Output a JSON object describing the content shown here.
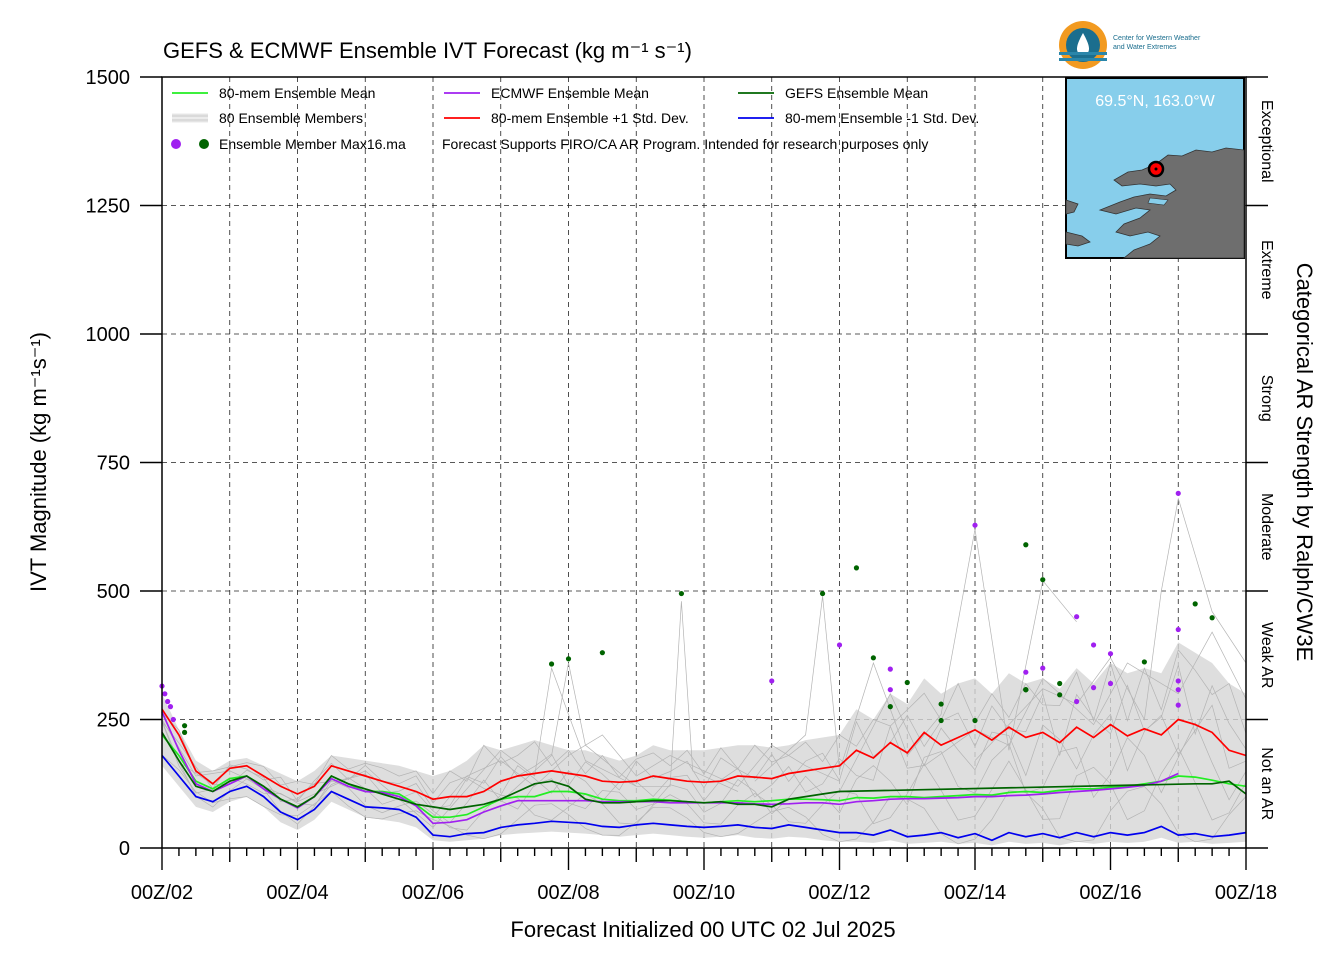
{
  "chart_data": {
    "type": "line",
    "title": "GEFS & ECMWF Ensemble IVT Forecast (kg m⁻¹ s⁻¹)",
    "xlabel": "Forecast Initialized 00 UTC 02 Jul 2025",
    "ylabel": "IVT Magnitude (kg m⁻¹s⁻¹)",
    "right_label": "Categorical AR Strength by Ralph/CW3E",
    "logo_text": [
      "Center for Western Weather",
      "and Water Extremes"
    ],
    "inset_label": "69.5°N, 163.0°W",
    "note": "Forecast Supports FIRO/CA AR Program. Intended for research purposes only",
    "xlim": [
      0,
      384
    ],
    "ylim": [
      0,
      1500
    ],
    "grid": true,
    "legend_placement": "top-left",
    "x_tick_labels": [
      {
        "h": 0,
        "label": "00Z/02"
      },
      {
        "h": 48,
        "label": "00Z/04"
      },
      {
        "h": 96,
        "label": "00Z/06"
      },
      {
        "h": 144,
        "label": "00Z/08"
      },
      {
        "h": 192,
        "label": "00Z/10"
      },
      {
        "h": 240,
        "label": "00Z/12"
      },
      {
        "h": 288,
        "label": "00Z/14"
      },
      {
        "h": 336,
        "label": "00Z/16"
      },
      {
        "h": 384,
        "label": "00Z/18"
      }
    ],
    "y_ticks": [
      0,
      250,
      500,
      750,
      1000,
      1250,
      1500
    ],
    "categories": [
      {
        "name": "Not an AR",
        "range": [
          0,
          250
        ]
      },
      {
        "name": "Weak AR",
        "range": [
          250,
          500
        ]
      },
      {
        "name": "Moderate",
        "range": [
          500,
          750
        ]
      },
      {
        "name": "Strong",
        "range": [
          750,
          1000
        ]
      },
      {
        "name": "Extreme",
        "range": [
          1000,
          1250
        ]
      },
      {
        "name": "Exceptional",
        "range": [
          1250,
          1500
        ]
      }
    ],
    "legend": [
      {
        "label": "80-mem Ensemble Mean",
        "color": "#22ee22",
        "kind": "line"
      },
      {
        "label": "ECMWF Ensemble Mean",
        "color": "#a020f0",
        "kind": "line"
      },
      {
        "label": "GEFS Ensemble Mean",
        "color": "#006400",
        "kind": "line"
      },
      {
        "label": "80 Ensemble Members",
        "color": "#b4b4b4",
        "kind": "lines"
      },
      {
        "label": "80-mem Ensemble +1 Std. Dev.",
        "color": "#ff0000",
        "kind": "line"
      },
      {
        "label": "80-mem Ensemble -1 Std. Dev.",
        "color": "#0000ee",
        "kind": "line"
      },
      {
        "label": "Ensemble Member Max16.ma",
        "colors": [
          "#a020f0",
          "#006400"
        ],
        "kind": "dots"
      }
    ],
    "series": [
      {
        "name": "80-mem Ensemble Mean",
        "color": "#22ee22",
        "x": [
          0,
          6,
          12,
          18,
          24,
          30,
          36,
          42,
          48,
          54,
          60,
          66,
          72,
          78,
          84,
          90,
          96,
          102,
          108,
          114,
          120,
          126,
          132,
          138,
          144,
          150,
          156,
          162,
          168,
          174,
          180,
          186,
          192,
          198,
          204,
          210,
          216,
          222,
          228,
          234,
          240,
          246,
          252,
          258,
          264,
          270,
          276,
          282,
          288,
          294,
          300,
          306,
          312,
          318,
          324,
          330,
          336,
          342,
          348,
          354,
          360,
          366,
          372,
          378,
          384
        ],
        "y": [
          220,
          180,
          130,
          115,
          135,
          140,
          120,
          95,
          80,
          100,
          140,
          125,
          110,
          110,
          105,
          85,
          60,
          60,
          65,
          80,
          95,
          100,
          100,
          110,
          110,
          105,
          95,
          92,
          92,
          95,
          93,
          90,
          88,
          90,
          92,
          90,
          92,
          95,
          95,
          94,
          92,
          98,
          97,
          100,
          100,
          98,
          100,
          102,
          104,
          103,
          108,
          110,
          108,
          112,
          115,
          115,
          118,
          120,
          125,
          130,
          140,
          138,
          132,
          125,
          120
        ]
      },
      {
        "name": "ECMWF Ensemble Mean",
        "color": "#a020f0",
        "x": [
          0,
          6,
          12,
          18,
          24,
          30,
          36,
          42,
          48,
          54,
          60,
          66,
          72,
          78,
          84,
          90,
          96,
          102,
          108,
          114,
          120,
          126,
          132,
          138,
          144,
          150,
          156,
          162,
          168,
          174,
          180,
          186,
          192,
          198,
          204,
          210,
          216,
          222,
          228,
          234,
          240,
          246,
          252,
          258,
          264,
          270,
          276,
          282,
          288,
          294,
          300,
          306,
          312,
          318,
          324,
          330,
          336,
          342,
          348,
          354,
          360
        ],
        "y": [
          265,
          190,
          125,
          110,
          125,
          140,
          115,
          95,
          78,
          100,
          135,
          120,
          110,
          108,
          100,
          82,
          48,
          50,
          55,
          70,
          82,
          92,
          92,
          92,
          92,
          92,
          90,
          90,
          90,
          90,
          88,
          88,
          88,
          88,
          88,
          86,
          85,
          86,
          88,
          88,
          85,
          90,
          92,
          95,
          96,
          96,
          97,
          98,
          100,
          100,
          102,
          103,
          105,
          108,
          110,
          112,
          115,
          118,
          122,
          130,
          145
        ]
      },
      {
        "name": "GEFS Ensemble Mean",
        "color": "#006400",
        "x": [
          0,
          6,
          12,
          18,
          24,
          30,
          36,
          42,
          48,
          54,
          60,
          66,
          72,
          78,
          84,
          90,
          96,
          102,
          108,
          114,
          120,
          126,
          132,
          138,
          144,
          150,
          156,
          162,
          168,
          174,
          180,
          186,
          192,
          198,
          204,
          210,
          216,
          222,
          228,
          234,
          240,
          366,
          372,
          378,
          384
        ],
        "y": [
          225,
          170,
          120,
          110,
          130,
          140,
          120,
          95,
          80,
          100,
          140,
          125,
          115,
          105,
          95,
          85,
          80,
          75,
          80,
          85,
          95,
          110,
          125,
          130,
          120,
          95,
          88,
          88,
          90,
          92,
          92,
          90,
          88,
          90,
          85,
          85,
          80,
          95,
          100,
          105,
          110,
          125,
          125,
          130,
          105
        ]
      },
      {
        "name": "80-mem Ensemble +1 Std. Dev.",
        "color": "#ff0000",
        "x": [
          0,
          6,
          12,
          18,
          24,
          30,
          36,
          42,
          48,
          54,
          60,
          66,
          72,
          78,
          84,
          90,
          96,
          102,
          108,
          114,
          120,
          126,
          132,
          138,
          144,
          150,
          156,
          162,
          168,
          174,
          180,
          186,
          192,
          198,
          204,
          210,
          216,
          222,
          228,
          234,
          240,
          246,
          252,
          258,
          264,
          270,
          276,
          282,
          288,
          294,
          300,
          306,
          312,
          318,
          324,
          330,
          336,
          342,
          348,
          354,
          360,
          366,
          372,
          378,
          384
        ],
        "y": [
          270,
          220,
          150,
          125,
          155,
          160,
          140,
          120,
          105,
          120,
          160,
          150,
          140,
          130,
          120,
          110,
          95,
          100,
          100,
          110,
          130,
          140,
          145,
          150,
          145,
          140,
          130,
          128,
          130,
          140,
          135,
          130,
          128,
          130,
          140,
          138,
          135,
          145,
          150,
          155,
          160,
          190,
          175,
          205,
          185,
          225,
          200,
          215,
          230,
          210,
          235,
          215,
          225,
          205,
          235,
          215,
          240,
          218,
          232,
          220,
          250,
          240,
          225,
          190,
          180
        ]
      },
      {
        "name": "80-mem Ensemble -1 Std. Dev.",
        "color": "#0000ee",
        "x": [
          0,
          6,
          12,
          18,
          24,
          30,
          36,
          42,
          48,
          54,
          60,
          66,
          72,
          78,
          84,
          90,
          96,
          102,
          108,
          114,
          120,
          126,
          132,
          138,
          144,
          150,
          156,
          162,
          168,
          174,
          180,
          186,
          192,
          198,
          204,
          210,
          216,
          222,
          228,
          234,
          240,
          246,
          252,
          258,
          264,
          270,
          276,
          282,
          288,
          294,
          300,
          306,
          312,
          318,
          324,
          330,
          336,
          342,
          348,
          354,
          360,
          366,
          372,
          378,
          384
        ],
        "y": [
          180,
          140,
          100,
          90,
          110,
          120,
          100,
          70,
          55,
          75,
          110,
          95,
          80,
          78,
          75,
          60,
          25,
          22,
          28,
          30,
          40,
          45,
          48,
          52,
          50,
          48,
          42,
          40,
          45,
          48,
          45,
          42,
          40,
          42,
          45,
          40,
          38,
          45,
          40,
          35,
          30,
          30,
          25,
          35,
          22,
          25,
          30,
          20,
          28,
          15,
          30,
          22,
          28,
          20,
          30,
          22,
          30,
          25,
          30,
          42,
          25,
          28,
          22,
          25,
          30
        ]
      }
    ],
    "ensemble_members_band": {
      "label": "80 Ensemble Members",
      "upper": [
        300,
        230,
        170,
        150,
        170,
        175,
        160,
        145,
        130,
        150,
        180,
        175,
        170,
        165,
        160,
        150,
        140,
        150,
        170,
        200,
        190,
        200,
        210,
        200,
        190,
        190,
        180,
        170,
        180,
        200,
        190,
        190,
        190,
        195,
        200,
        200,
        195,
        200,
        210,
        215,
        220,
        270,
        250,
        300,
        280,
        330,
        300,
        320,
        330,
        300,
        340,
        320,
        330,
        310,
        350,
        320,
        360,
        340,
        350,
        340,
        400,
        380,
        360,
        320,
        300
      ],
      "lower": [
        160,
        120,
        80,
        70,
        90,
        100,
        80,
        50,
        35,
        55,
        90,
        75,
        60,
        55,
        50,
        40,
        15,
        12,
        15,
        18,
        25,
        28,
        30,
        32,
        30,
        28,
        25,
        22,
        25,
        28,
        25,
        22,
        20,
        22,
        25,
        20,
        18,
        22,
        20,
        15,
        12,
        12,
        10,
        15,
        8,
        10,
        12,
        8,
        10,
        5,
        12,
        8,
        10,
        5,
        12,
        8,
        12,
        10,
        12,
        20,
        10,
        12,
        8,
        10,
        12
      ]
    },
    "ecmwf_member_maxima": [
      {
        "x": 0,
        "y": 315
      },
      {
        "x": 1,
        "y": 300
      },
      {
        "x": 2,
        "y": 285
      },
      {
        "x": 3,
        "y": 275
      },
      {
        "x": 4,
        "y": 250
      },
      {
        "x": 216,
        "y": 325
      },
      {
        "x": 240,
        "y": 395
      },
      {
        "x": 258,
        "y": 348
      },
      {
        "x": 258,
        "y": 308
      },
      {
        "x": 288,
        "y": 628
      },
      {
        "x": 306,
        "y": 342
      },
      {
        "x": 312,
        "y": 350
      },
      {
        "x": 324,
        "y": 450
      },
      {
        "x": 324,
        "y": 285
      },
      {
        "x": 330,
        "y": 395
      },
      {
        "x": 330,
        "y": 312
      },
      {
        "x": 336,
        "y": 378
      },
      {
        "x": 336,
        "y": 320
      },
      {
        "x": 360,
        "y": 690
      },
      {
        "x": 360,
        "y": 425
      },
      {
        "x": 360,
        "y": 325
      },
      {
        "x": 360,
        "y": 308
      },
      {
        "x": 360,
        "y": 278
      }
    ],
    "gefs_member_maxima": [
      {
        "x": 8,
        "y": 238
      },
      {
        "x": 8,
        "y": 225
      },
      {
        "x": 138,
        "y": 358
      },
      {
        "x": 144,
        "y": 368
      },
      {
        "x": 156,
        "y": 380
      },
      {
        "x": 184,
        "y": 495
      },
      {
        "x": 234,
        "y": 495
      },
      {
        "x": 246,
        "y": 545
      },
      {
        "x": 252,
        "y": 370
      },
      {
        "x": 258,
        "y": 275
      },
      {
        "x": 264,
        "y": 322
      },
      {
        "x": 276,
        "y": 280
      },
      {
        "x": 276,
        "y": 248
      },
      {
        "x": 288,
        "y": 248
      },
      {
        "x": 306,
        "y": 308
      },
      {
        "x": 306,
        "y": 308
      },
      {
        "x": 306,
        "y": 308
      },
      {
        "x": 312,
        "y": 522
      },
      {
        "x": 306,
        "y": 590
      },
      {
        "x": 318,
        "y": 320
      },
      {
        "x": 318,
        "y": 298
      },
      {
        "x": 348,
        "y": 362
      },
      {
        "x": 366,
        "y": 475
      },
      {
        "x": 372,
        "y": 448
      }
    ],
    "member_sample_lines": [
      {
        "x": [
          0,
          12,
          24,
          48,
          72,
          96,
          120,
          132,
          138,
          150,
          168
        ],
        "y": [
          250,
          140,
          150,
          90,
          150,
          40,
          190,
          140,
          350,
          170,
          120
        ]
      },
      {
        "x": [
          120,
          138,
          144,
          150,
          168,
          180,
          184,
          188,
          204
        ],
        "y": [
          90,
          180,
          360,
          200,
          120,
          120,
          480,
          150,
          110
        ]
      },
      {
        "x": [
          210,
          228,
          234,
          240,
          252,
          264,
          276,
          288,
          300,
          312,
          324
        ],
        "y": [
          130,
          220,
          490,
          150,
          360,
          180,
          260,
          620,
          190,
          520,
          440
        ]
      },
      {
        "x": [
          288,
          300,
          312,
          324,
          336,
          348,
          354,
          360,
          372,
          384
        ],
        "y": [
          170,
          240,
          310,
          280,
          370,
          250,
          500,
          680,
          460,
          360
        ]
      },
      {
        "x": [
          240,
          258,
          270,
          288,
          300,
          312,
          330,
          342,
          360,
          372,
          384
        ],
        "y": [
          110,
          300,
          160,
          230,
          200,
          330,
          240,
          360,
          300,
          420,
          290
        ]
      },
      {
        "x": [
          96,
          108,
          120,
          132,
          144,
          156,
          168,
          180,
          192,
          204,
          216,
          228,
          240
        ],
        "y": [
          60,
          140,
          170,
          120,
          180,
          220,
          140,
          180,
          150,
          120,
          200,
          160,
          130
        ]
      }
    ],
    "colors": {
      "members": "#b4b4b4",
      "band_fill": "#d6d6d6",
      "map_water": "#87ceeb",
      "map_land": "#6e6e6e",
      "marker": "#ff0000"
    }
  }
}
